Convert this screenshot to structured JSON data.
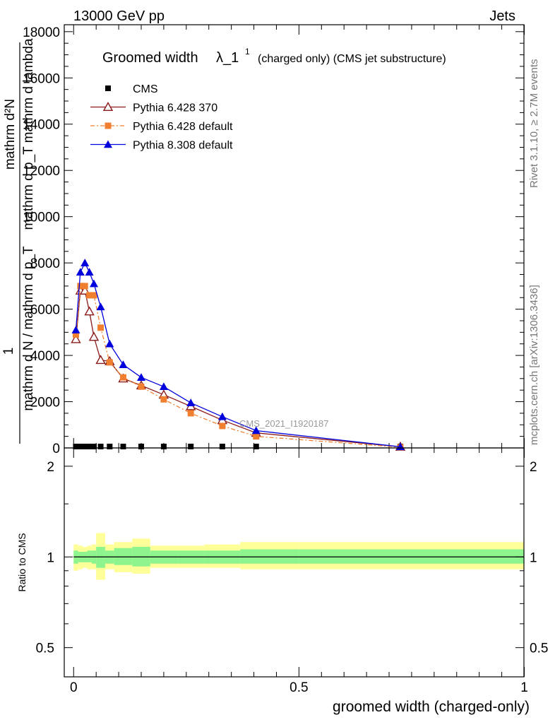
{
  "header": {
    "energy_label": "13000 GeV pp",
    "category_label": "Jets"
  },
  "side_labels": {
    "rivet": "Rivet 3.1.10, ≥ 2.7M events",
    "mcplots": "mcplots.cern.ch [arXiv:1306.3436]"
  },
  "analysis_id": "CMS_2021_I1920187",
  "chart_data": [
    {
      "type": "line",
      "title": "Groomed width",
      "title_symbol": "λ_1",
      "title_sup": "1",
      "title_suffix": "(charged only) (CMS jet substructure)",
      "ylabel_lines": [
        "1",
        "mathrm d N / mathrm d p_T",
        "mathrm d²N",
        "mathrm d p_T mathrm d lambda"
      ],
      "ylim": [
        0,
        18300
      ],
      "xlim": [
        -0.02,
        1.0
      ],
      "y_ticks": [
        0,
        2000,
        4000,
        6000,
        8000,
        10000,
        12000,
        14000,
        16000,
        18000
      ],
      "y_tick_labels": [
        "0",
        "2000",
        "4000",
        "6000",
        "8000",
        "10000",
        "12000",
        "14000",
        "16000",
        "18000"
      ],
      "legend_position": "top-left",
      "series": [
        {
          "name": "CMS",
          "color": "#000000",
          "marker": "square",
          "x": [
            0.005,
            0.015,
            0.025,
            0.035,
            0.045,
            0.06,
            0.08,
            0.11,
            0.15,
            0.2,
            0.26,
            0.33,
            0.405,
            0.725
          ],
          "y": [
            20,
            20,
            20,
            20,
            20,
            20,
            20,
            20,
            20,
            20,
            20,
            20,
            20,
            20
          ]
        },
        {
          "name": "Pythia 6.428 370",
          "color": "#8b1a1a",
          "marker": "open-triangle",
          "dash": "",
          "x": [
            0.005,
            0.015,
            0.025,
            0.035,
            0.045,
            0.06,
            0.08,
            0.11,
            0.15,
            0.2,
            0.26,
            0.33,
            0.405,
            0.725
          ],
          "y": [
            4700,
            6800,
            6800,
            5900,
            4800,
            3800,
            3750,
            3000,
            2700,
            2300,
            1800,
            1200,
            650,
            50
          ]
        },
        {
          "name": "Pythia 6.428 default",
          "color": "#f08030",
          "marker": "filled-square",
          "dash": "6,3,2,3",
          "x": [
            0.005,
            0.015,
            0.025,
            0.035,
            0.045,
            0.06,
            0.08,
            0.11,
            0.15,
            0.2,
            0.26,
            0.33,
            0.405,
            0.725
          ],
          "y": [
            4900,
            7000,
            7000,
            6600,
            6600,
            5200,
            3700,
            3050,
            2650,
            2100,
            1500,
            950,
            500,
            30
          ]
        },
        {
          "name": "Pythia 8.308 default",
          "color": "#0000dd",
          "marker": "filled-triangle",
          "dash": "",
          "x": [
            0.005,
            0.015,
            0.025,
            0.035,
            0.045,
            0.06,
            0.08,
            0.11,
            0.15,
            0.2,
            0.26,
            0.33,
            0.405,
            0.725
          ],
          "y": [
            5100,
            7600,
            8000,
            7600,
            7100,
            6100,
            4500,
            3600,
            3050,
            2650,
            1950,
            1350,
            750,
            50
          ]
        }
      ]
    },
    {
      "type": "area",
      "ylabel": "Ratio to CMS",
      "xlabel": "groomed width (charged-only)",
      "xlim": [
        -0.02,
        1.0
      ],
      "ylim": [
        0.4,
        2.3
      ],
      "log_y": true,
      "x_ticks": [
        0,
        0.5,
        1
      ],
      "x_tick_labels": [
        "0",
        "0.5",
        "1"
      ],
      "y_ticks": [
        0.5,
        1,
        2
      ],
      "y_tick_labels": [
        "0.5",
        "1",
        "2"
      ],
      "reference_line": 1,
      "bins": [
        {
          "x0": 0.0,
          "x1": 0.01,
          "inner": [
            0.95,
            1.05
          ],
          "outer": [
            0.9,
            1.1
          ]
        },
        {
          "x0": 0.01,
          "x1": 0.02,
          "inner": [
            0.96,
            1.04
          ],
          "outer": [
            0.91,
            1.09
          ]
        },
        {
          "x0": 0.02,
          "x1": 0.03,
          "inner": [
            0.96,
            1.04
          ],
          "outer": [
            0.92,
            1.08
          ]
        },
        {
          "x0": 0.03,
          "x1": 0.04,
          "inner": [
            0.96,
            1.05
          ],
          "outer": [
            0.91,
            1.09
          ]
        },
        {
          "x0": 0.04,
          "x1": 0.05,
          "inner": [
            0.95,
            1.05
          ],
          "outer": [
            0.91,
            1.1
          ]
        },
        {
          "x0": 0.05,
          "x1": 0.07,
          "inner": [
            0.92,
            1.08
          ],
          "outer": [
            0.84,
            1.2
          ]
        },
        {
          "x0": 0.07,
          "x1": 0.09,
          "inner": [
            0.95,
            1.05
          ],
          "outer": [
            0.91,
            1.1
          ]
        },
        {
          "x0": 0.09,
          "x1": 0.13,
          "inner": [
            0.94,
            1.07
          ],
          "outer": [
            0.89,
            1.12
          ]
        },
        {
          "x0": 0.13,
          "x1": 0.17,
          "inner": [
            0.93,
            1.08
          ],
          "outer": [
            0.88,
            1.15
          ]
        },
        {
          "x0": 0.17,
          "x1": 0.23,
          "inner": [
            0.95,
            1.05
          ],
          "outer": [
            0.92,
            1.09
          ]
        },
        {
          "x0": 0.23,
          "x1": 0.29,
          "inner": [
            0.95,
            1.05
          ],
          "outer": [
            0.92,
            1.09
          ]
        },
        {
          "x0": 0.29,
          "x1": 0.37,
          "inner": [
            0.95,
            1.05
          ],
          "outer": [
            0.92,
            1.1
          ]
        },
        {
          "x0": 0.37,
          "x1": 0.5,
          "inner": [
            0.95,
            1.06
          ],
          "outer": [
            0.91,
            1.12
          ]
        },
        {
          "x0": 0.5,
          "x1": 1.0,
          "inner": [
            0.95,
            1.06
          ],
          "outer": [
            0.91,
            1.12
          ]
        }
      ],
      "inner_color": "#8ef58e",
      "outer_color": "#ffff99"
    }
  ]
}
